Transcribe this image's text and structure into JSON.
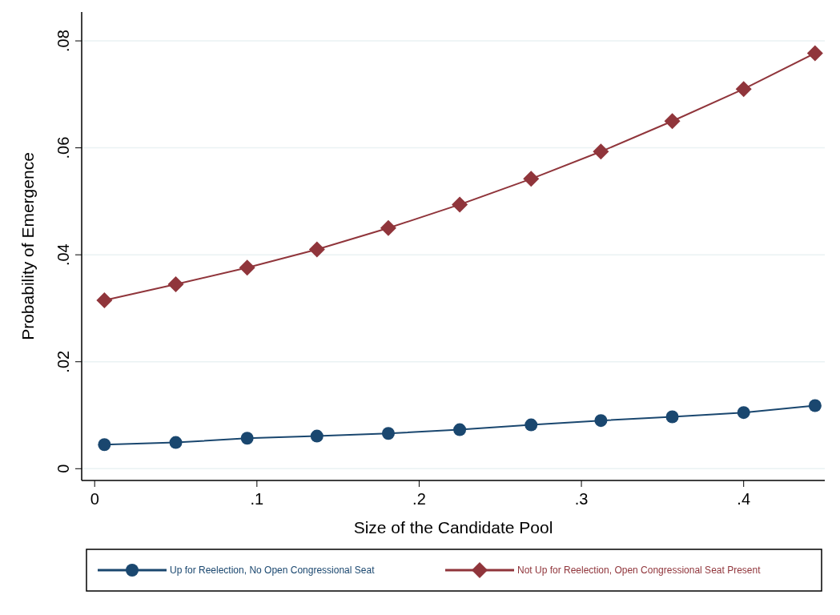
{
  "chart_data": {
    "type": "line",
    "xlabel": "Size of the Candidate Pool",
    "ylabel": "Probability of Emergence",
    "x": [
      0.006,
      0.05,
      0.094,
      0.137,
      0.181,
      0.225,
      0.269,
      0.312,
      0.356,
      0.4,
      0.444
    ],
    "series": [
      {
        "name": "Up for Reelection, No Open Congressional Seat",
        "color": "#1a476f",
        "marker": "circle",
        "values": [
          0.0045,
          0.0049,
          0.0057,
          0.0061,
          0.0066,
          0.0073,
          0.0082,
          0.009,
          0.0097,
          0.0105,
          0.0118
        ]
      },
      {
        "name": "Not Up for Reelection, Open Congressional Seat Present",
        "color": "#90353b",
        "marker": "diamond",
        "values": [
          0.0315,
          0.0345,
          0.0376,
          0.041,
          0.045,
          0.0494,
          0.0542,
          0.0593,
          0.065,
          0.071,
          0.0777
        ]
      }
    ],
    "xlim": [
      -0.008,
      0.45
    ],
    "ylim": [
      -0.0022,
      0.0854
    ],
    "xticks": [
      0,
      {
        "value": 0.1,
        "label": ".1"
      },
      {
        "value": 0.2,
        "label": ".2"
      },
      {
        "value": 0.3,
        "label": ".3"
      },
      {
        "value": 0.4,
        "label": ".4"
      }
    ],
    "yticks": [
      0,
      {
        "value": 0.02,
        "label": ".02"
      },
      {
        "value": 0.04,
        "label": ".04"
      },
      {
        "value": 0.06,
        "label": ".06"
      },
      {
        "value": 0.08,
        "label": ".08"
      }
    ],
    "grid": "y",
    "legend": "bottom",
    "line_style": "solid"
  }
}
